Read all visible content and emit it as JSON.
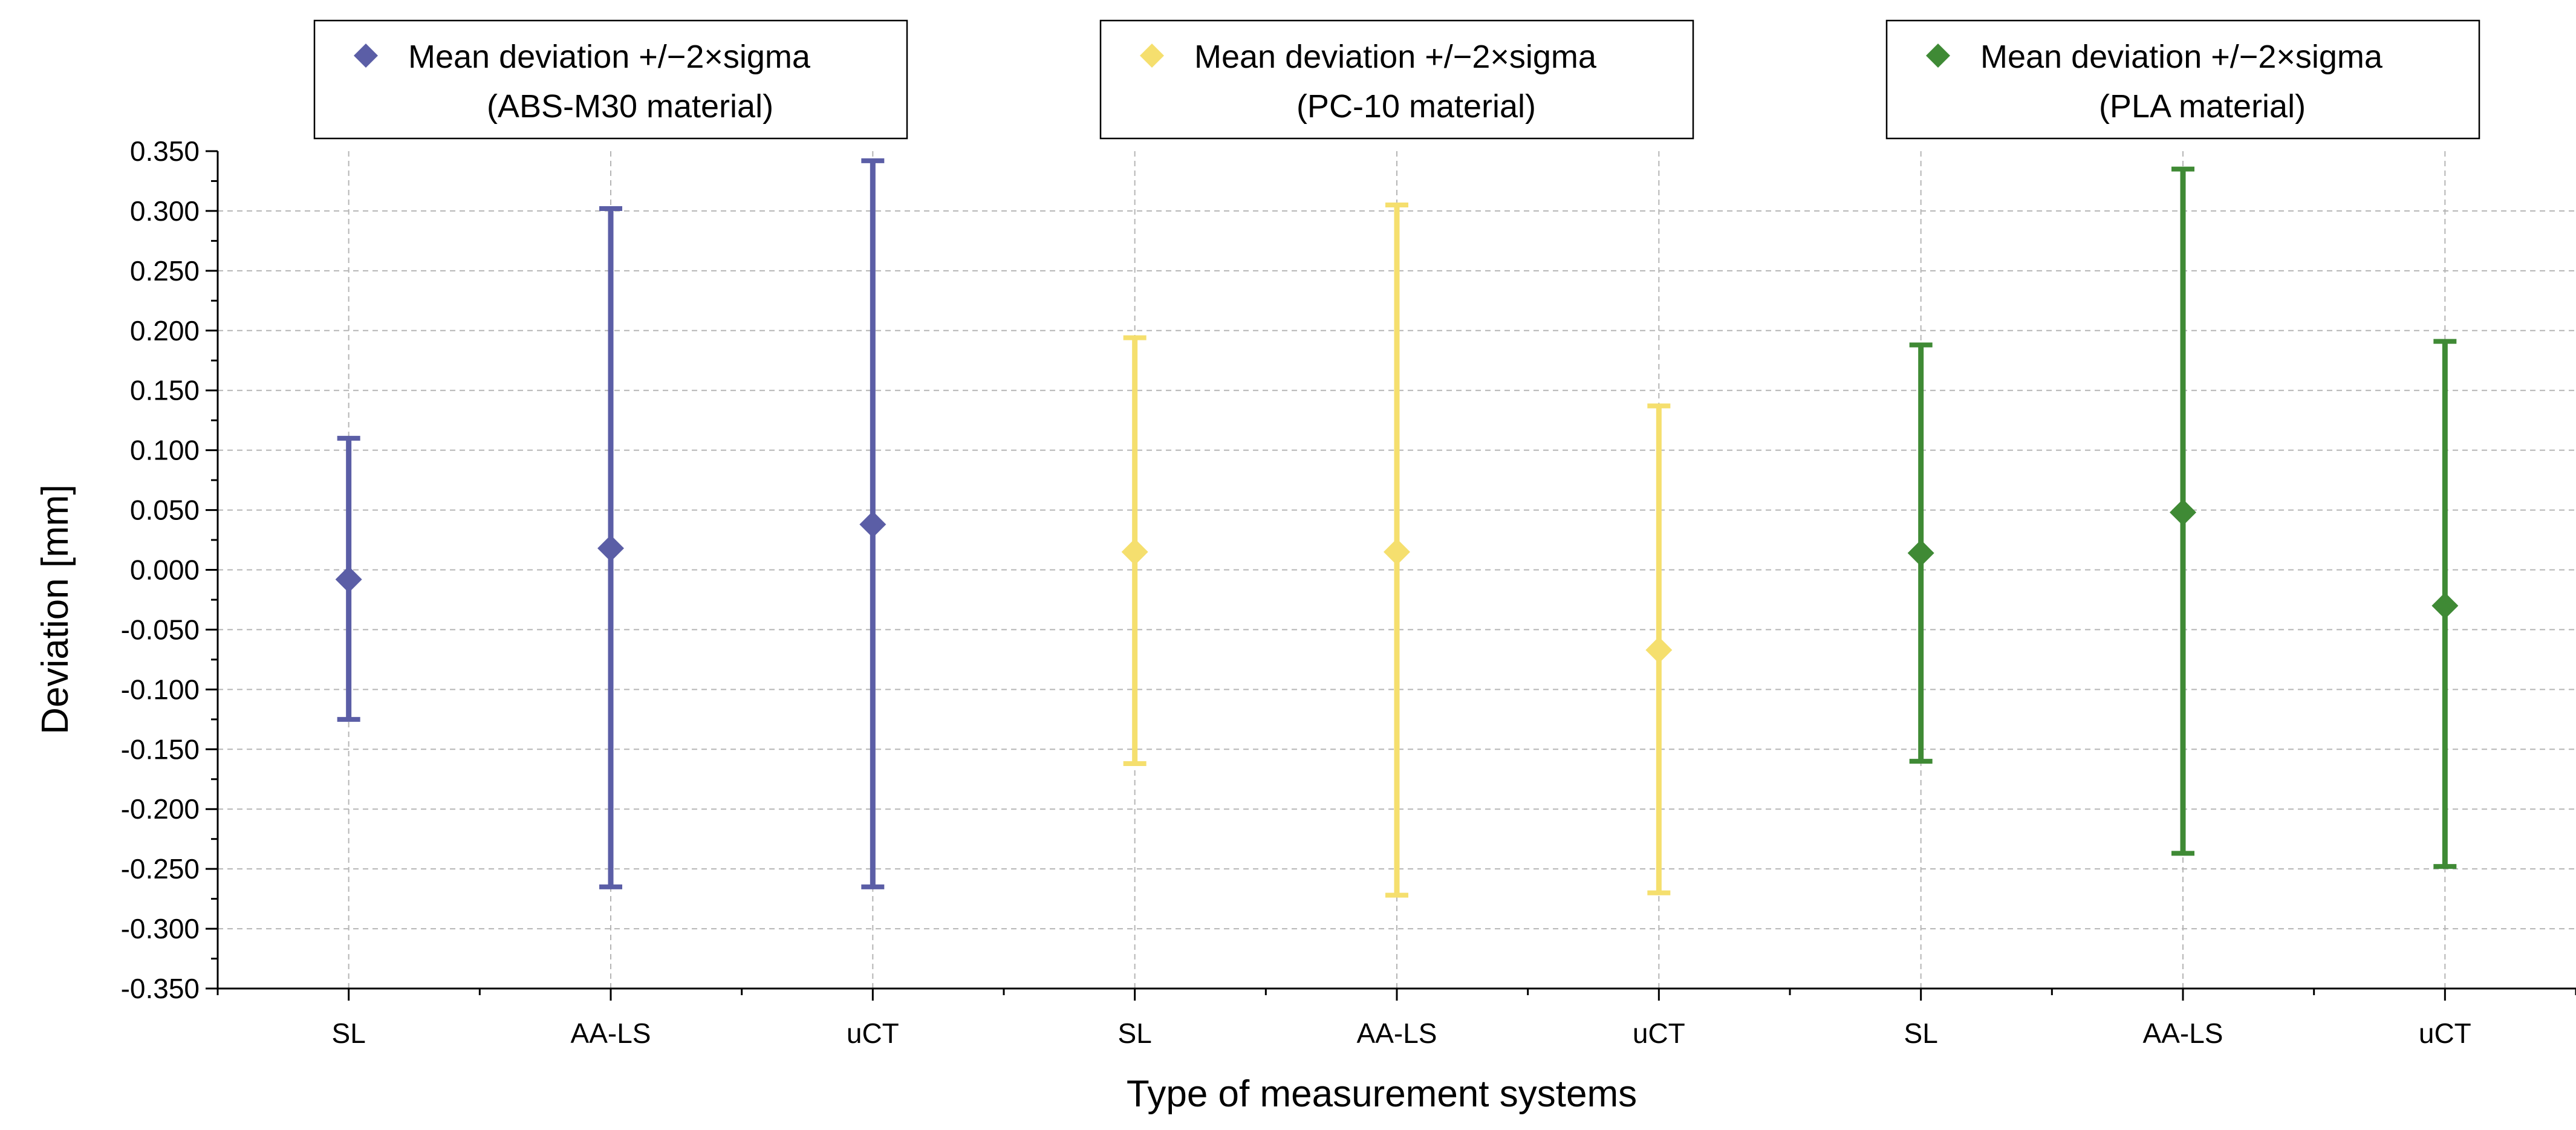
{
  "chart_data": {
    "type": "errorbar",
    "title": "",
    "xlabel": "Type of measurement systems",
    "ylabel": "Deviation [mm]",
    "ylim": [
      -0.35,
      0.35
    ],
    "ytick_step": 0.05,
    "grid": true,
    "categories": [
      "SL",
      "AA-LS",
      "uCT",
      "SL",
      "AA-LS",
      "uCT",
      "SL",
      "AA-LS",
      "uCT"
    ],
    "series": [
      {
        "name": "ABS-M30",
        "legend_line1": "Mean deviation +/−2×sigma",
        "legend_line2": "(ABS-M30 material)",
        "color": "#5b5ea6",
        "points": [
          {
            "category": "SL",
            "mean": -0.008,
            "lower": -0.125,
            "upper": 0.11
          },
          {
            "category": "AA-LS",
            "mean": 0.018,
            "lower": -0.265,
            "upper": 0.302
          },
          {
            "category": "uCT",
            "mean": 0.038,
            "lower": -0.265,
            "upper": 0.342
          }
        ]
      },
      {
        "name": "PC-10",
        "legend_line1": "Mean deviation +/−2×sigma",
        "legend_line2": "(PC-10 material)",
        "color": "#f5df6e",
        "points": [
          {
            "category": "SL",
            "mean": 0.015,
            "lower": -0.162,
            "upper": 0.194
          },
          {
            "category": "AA-LS",
            "mean": 0.015,
            "lower": -0.272,
            "upper": 0.305
          },
          {
            "category": "uCT",
            "mean": -0.067,
            "lower": -0.27,
            "upper": 0.137
          }
        ]
      },
      {
        "name": "PLA",
        "legend_line1": "Mean deviation +/−2×sigma",
        "legend_line2": "(PLA material)",
        "color": "#3f8a35",
        "points": [
          {
            "category": "SL",
            "mean": 0.014,
            "lower": -0.16,
            "upper": 0.188
          },
          {
            "category": "AA-LS",
            "mean": 0.048,
            "lower": -0.237,
            "upper": 0.335
          },
          {
            "category": "uCT",
            "mean": -0.03,
            "lower": -0.248,
            "upper": 0.191
          }
        ]
      }
    ]
  }
}
